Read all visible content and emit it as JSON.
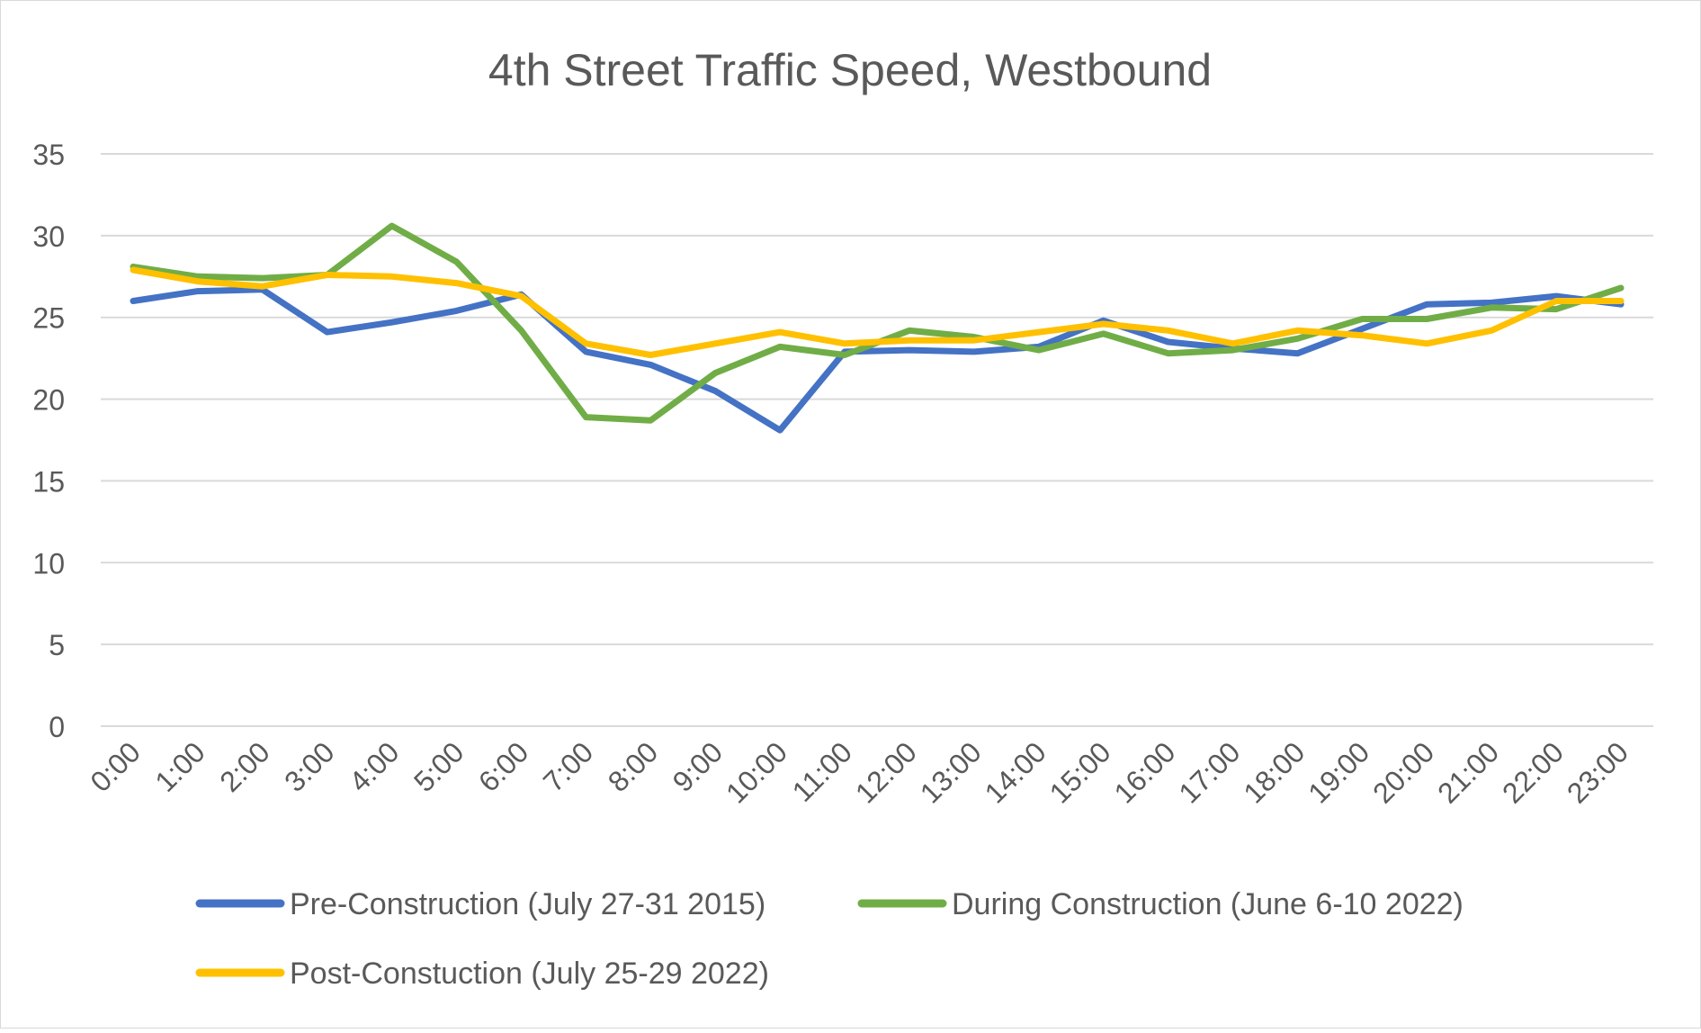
{
  "chart_data": {
    "type": "line",
    "title": "4th Street Traffic Speed, Westbound",
    "xlabel": "",
    "ylabel": "",
    "ylim": [
      0,
      35
    ],
    "yticks": [
      0,
      5,
      10,
      15,
      20,
      25,
      30,
      35
    ],
    "grid": true,
    "legend_position": "bottom",
    "categories": [
      "0:00",
      "1:00",
      "2:00",
      "3:00",
      "4:00",
      "5:00",
      "6:00",
      "7:00",
      "8:00",
      "9:00",
      "10:00",
      "11:00",
      "12:00",
      "13:00",
      "14:00",
      "15:00",
      "16:00",
      "17:00",
      "18:00",
      "19:00",
      "20:00",
      "21:00",
      "22:00",
      "23:00"
    ],
    "series": [
      {
        "name": "Pre-Construction (July 27-31 2015)",
        "color": "#4472C4",
        "values": [
          26.0,
          26.6,
          26.7,
          24.1,
          24.7,
          25.4,
          26.4,
          22.9,
          22.1,
          20.5,
          18.1,
          22.9,
          23.0,
          22.9,
          23.2,
          24.8,
          23.5,
          23.1,
          22.8,
          24.3,
          25.8,
          25.9,
          26.3,
          25.8
        ]
      },
      {
        "name": "During Construction (June 6-10 2022)",
        "color": "#70AD47",
        "values": [
          28.1,
          27.5,
          27.4,
          27.6,
          30.6,
          28.4,
          24.2,
          18.9,
          18.7,
          21.6,
          23.2,
          22.7,
          24.2,
          23.8,
          23.0,
          24.0,
          22.8,
          23.0,
          23.7,
          24.9,
          24.9,
          25.6,
          25.5,
          26.8
        ]
      },
      {
        "name": "Post-Constuction (July 25-29 2022)",
        "color": "#FFC000",
        "values": [
          27.9,
          27.2,
          26.9,
          27.6,
          27.5,
          27.1,
          26.3,
          23.4,
          22.7,
          23.4,
          24.1,
          23.4,
          23.6,
          23.6,
          24.1,
          24.6,
          24.2,
          23.4,
          24.2,
          23.9,
          23.4,
          24.2,
          26.0,
          26.0
        ]
      }
    ]
  }
}
